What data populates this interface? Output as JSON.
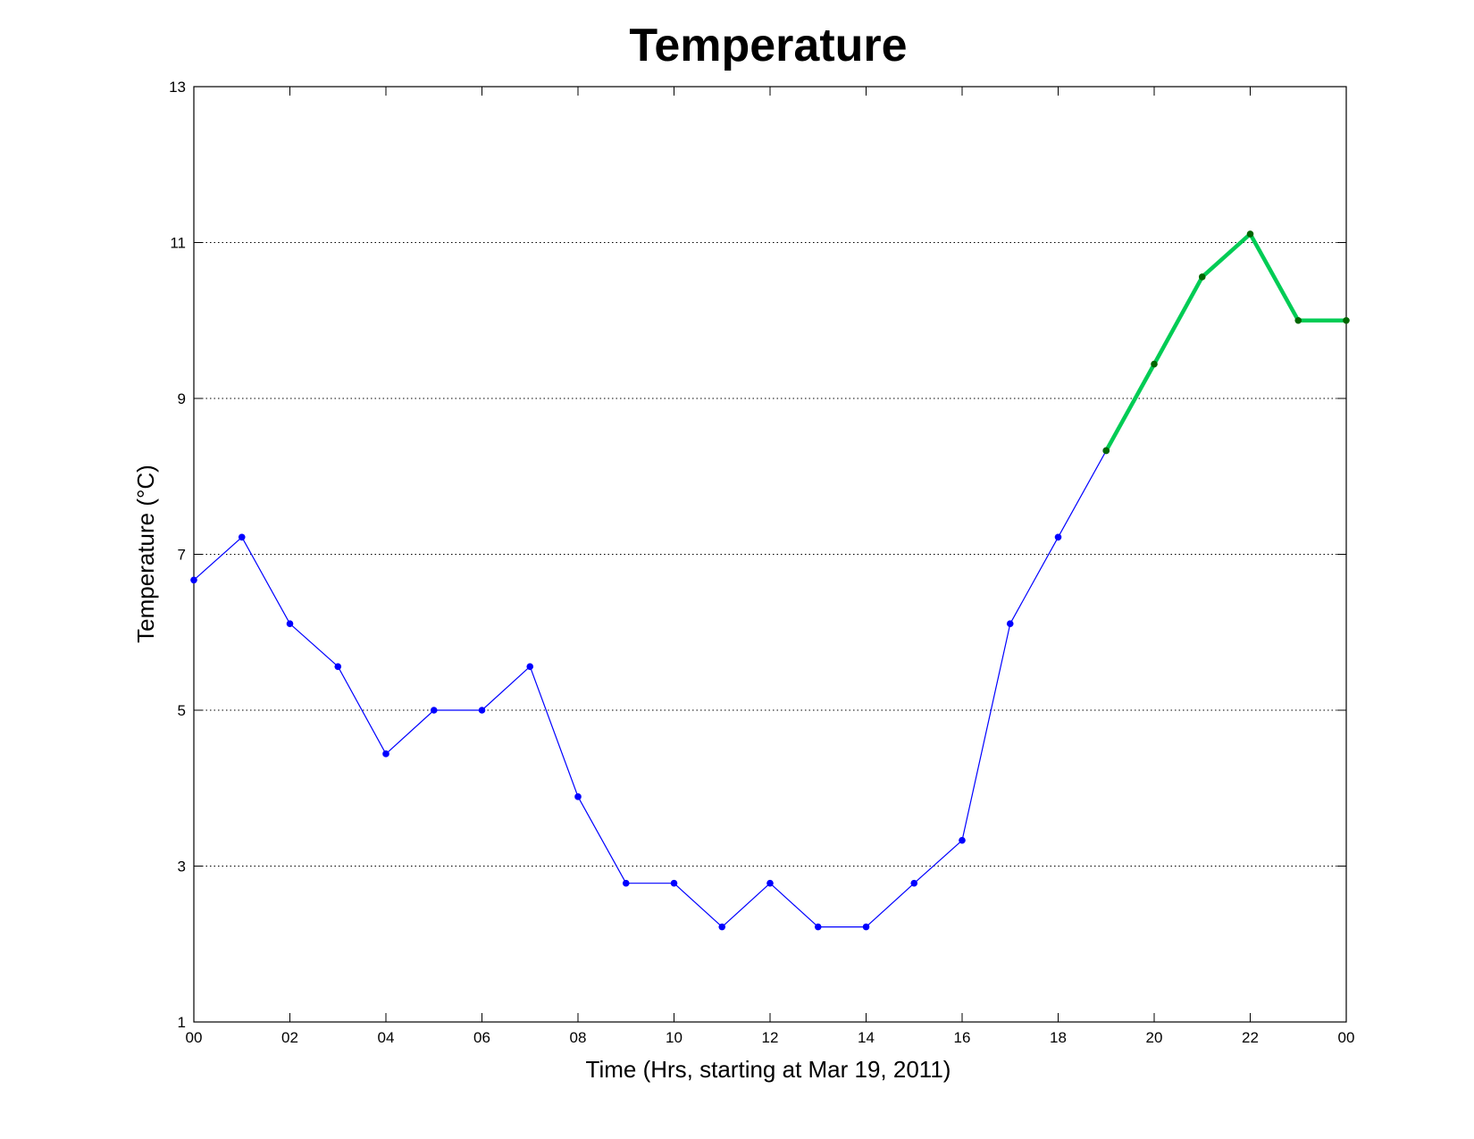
{
  "chart_data": {
    "type": "line",
    "title": "Temperature",
    "xlabel": "Time (Hrs, starting at Mar 19, 2011)",
    "ylabel": "Temperature (°C)",
    "xlim": [
      0,
      24
    ],
    "ylim": [
      1,
      13
    ],
    "grid": "horizontal dotted",
    "x_ticks": [
      "00",
      "02",
      "04",
      "06",
      "08",
      "10",
      "12",
      "14",
      "16",
      "18",
      "20",
      "22",
      "00"
    ],
    "y_ticks": [
      1,
      3,
      5,
      7,
      9,
      11,
      13
    ],
    "series": [
      {
        "color": "#0000ff",
        "x": [
          0,
          1,
          2,
          3,
          4,
          5,
          6,
          7,
          8,
          9,
          10,
          11,
          12,
          13,
          14,
          15,
          16,
          17,
          18,
          19
        ],
        "values": [
          6.67,
          7.22,
          6.11,
          5.56,
          4.44,
          5.0,
          5.0,
          5.56,
          3.89,
          2.78,
          2.78,
          2.22,
          2.78,
          2.22,
          2.22,
          2.78,
          3.33,
          6.11,
          7.22,
          8.33
        ]
      },
      {
        "color": "#00cc55",
        "marker_color": "#006600",
        "x": [
          19,
          20,
          21,
          22,
          23,
          24
        ],
        "values": [
          8.33,
          9.44,
          10.56,
          11.11,
          10.0,
          10.0
        ]
      }
    ]
  }
}
